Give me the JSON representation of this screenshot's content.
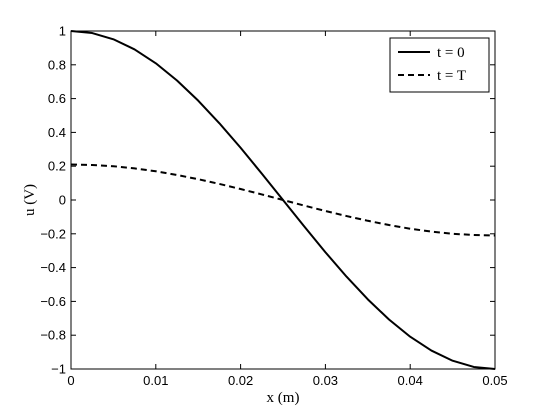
{
  "chart_data": {
    "type": "line",
    "xlabel": "x (m)",
    "ylabel": "u (V)",
    "xlim": [
      0,
      0.05
    ],
    "ylim": [
      -1,
      1
    ],
    "xticks": [
      0,
      0.01,
      0.02,
      0.03,
      0.04,
      0.05
    ],
    "xtick_labels": [
      "0",
      "0.01",
      "0.02",
      "0.03",
      "0.04",
      "0.05"
    ],
    "yticks": [
      -1,
      -0.8,
      -0.6,
      -0.4,
      -0.2,
      0,
      0.2,
      0.4,
      0.6,
      0.8,
      1
    ],
    "ytick_labels": [
      "−1",
      "−0.8",
      "−0.6",
      "−0.4",
      "−0.2",
      "0",
      "0.2",
      "0.4",
      "0.6",
      "0.8",
      "1"
    ],
    "grid": false,
    "legend_position": "top-right",
    "series": [
      {
        "name": "t = 0",
        "style": "solid",
        "color": "#000000",
        "x": [
          0,
          0.0025,
          0.005,
          0.0075,
          0.01,
          0.0125,
          0.015,
          0.0175,
          0.02,
          0.0225,
          0.025,
          0.0275,
          0.03,
          0.0325,
          0.035,
          0.0375,
          0.04,
          0.0425,
          0.045,
          0.0475,
          0.05
        ],
        "y": [
          1,
          0.988,
          0.951,
          0.891,
          0.809,
          0.707,
          0.588,
          0.454,
          0.309,
          0.156,
          0,
          -0.156,
          -0.309,
          -0.454,
          -0.588,
          -0.707,
          -0.809,
          -0.891,
          -0.951,
          -0.988,
          -1
        ]
      },
      {
        "name": "t = T",
        "style": "dashed",
        "color": "#000000",
        "x": [
          0,
          0.0025,
          0.005,
          0.0075,
          0.01,
          0.0125,
          0.015,
          0.0175,
          0.02,
          0.0225,
          0.025,
          0.0275,
          0.03,
          0.0325,
          0.035,
          0.0375,
          0.04,
          0.0425,
          0.045,
          0.0475,
          0.05
        ],
        "y": [
          0.21,
          0.207,
          0.2,
          0.187,
          0.17,
          0.148,
          0.123,
          0.095,
          0.065,
          0.033,
          0,
          -0.033,
          -0.065,
          -0.095,
          -0.123,
          -0.148,
          -0.17,
          -0.187,
          -0.2,
          -0.207,
          -0.21
        ]
      }
    ]
  }
}
